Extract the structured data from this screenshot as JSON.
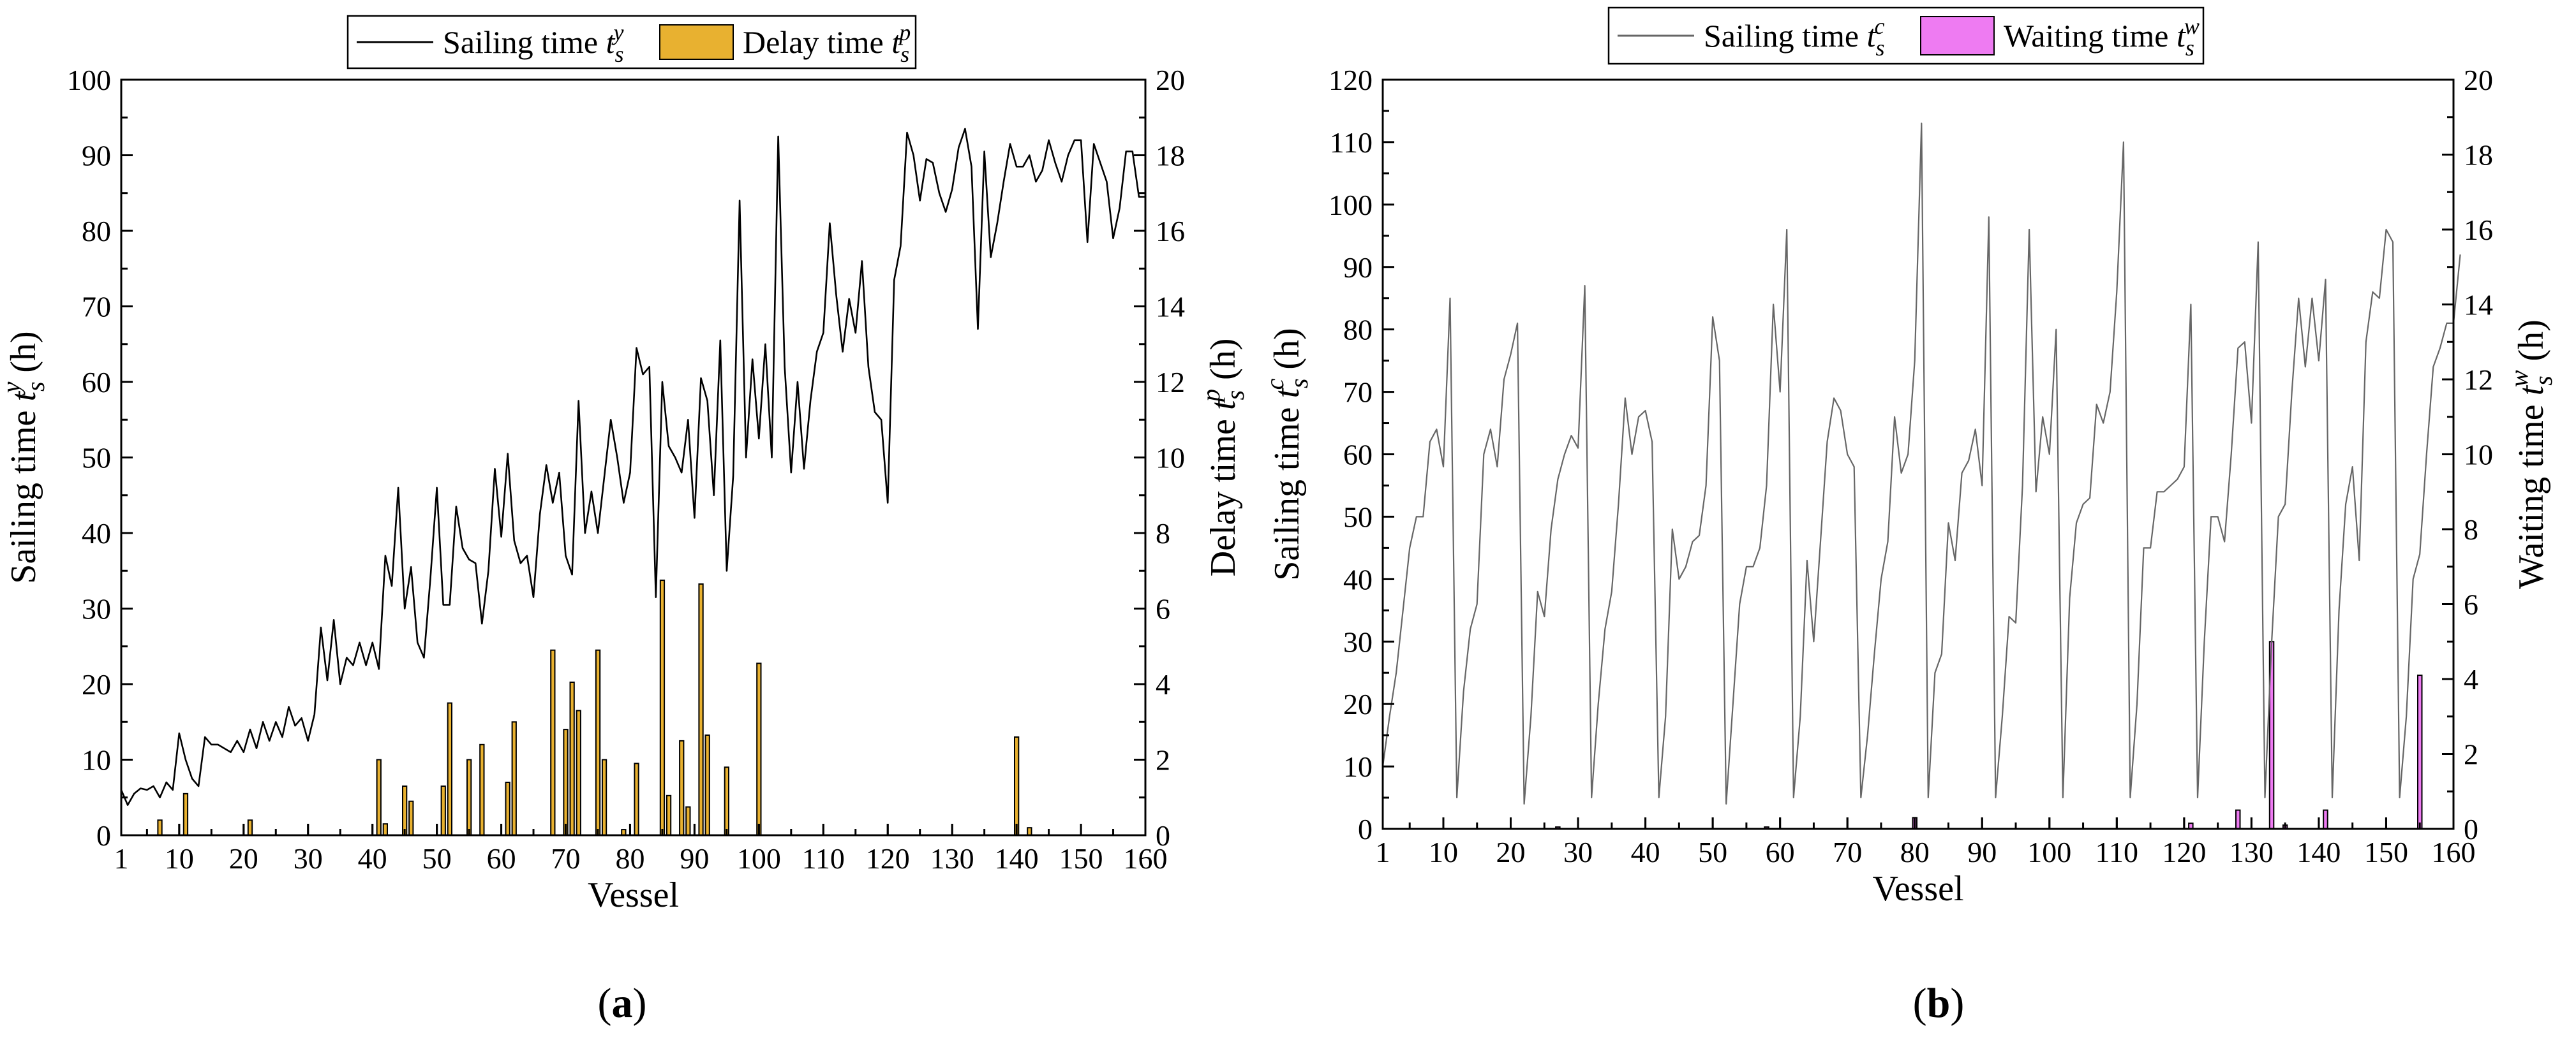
{
  "chart_data": [
    {
      "type": "line+bar",
      "panel_label": "(a)",
      "xlabel": "Vessel",
      "ylabel": "Sailing time t_s^y (h)",
      "ylabel_right": "Delay time t_s^p (h)",
      "xlim": [
        1,
        160
      ],
      "ylim": [
        0,
        100
      ],
      "ylim_right": [
        0,
        20
      ],
      "x_ticks": [
        1,
        10,
        20,
        30,
        40,
        50,
        60,
        70,
        80,
        90,
        100,
        110,
        120,
        130,
        140,
        150,
        160
      ],
      "y_ticks": [
        0,
        10,
        20,
        30,
        40,
        50,
        60,
        70,
        80,
        90,
        100
      ],
      "y_ticks_right": [
        0,
        2,
        4,
        6,
        8,
        10,
        12,
        14,
        16,
        18,
        20
      ],
      "legend_placement": "top-center",
      "legend": [
        {
          "label": "Sailing time t",
          "sub": "s",
          "sup": "y",
          "kind": "line",
          "color": "#000000"
        },
        {
          "label": "Delay time t",
          "sub": "s",
          "sup": "p",
          "kind": "bar",
          "color": "#E8B130"
        }
      ],
      "series": [
        {
          "name": "Sailing time t_s^y",
          "kind": "line",
          "axis": "left",
          "color": "#000000",
          "values": [
            6.0,
            4.0,
            5.5,
            6.2,
            6.0,
            6.5,
            5.0,
            7.0,
            6.0,
            13.5,
            10.0,
            7.5,
            6.5,
            13.0,
            12.0,
            12.0,
            11.5,
            11.0,
            12.5,
            11.0,
            14.0,
            11.5,
            15.0,
            12.5,
            15.0,
            13.0,
            17.0,
            14.5,
            15.5,
            12.5,
            16.0,
            27.5,
            20.5,
            28.5,
            20.0,
            23.5,
            22.5,
            25.5,
            22.5,
            25.5,
            22.0,
            37.0,
            33.0,
            46.0,
            30.0,
            35.5,
            25.5,
            23.5,
            34.0,
            46.0,
            30.5,
            30.5,
            43.5,
            38.0,
            36.5,
            36.0,
            28.0,
            35.0,
            48.5,
            39.5,
            50.5,
            39.0,
            36.0,
            37.0,
            31.5,
            42.5,
            49.0,
            44.0,
            48.0,
            37.0,
            34.5,
            57.5,
            40.0,
            45.5,
            40.0,
            47.5,
            55.0,
            50.0,
            44.0,
            48.0,
            64.5,
            61.0,
            62.0,
            31.5,
            60.0,
            51.5,
            50.0,
            48.0,
            55.0,
            42.0,
            60.5,
            57.5,
            45.0,
            65.5,
            35.0,
            47.5,
            84.0,
            50.0,
            63.0,
            52.5,
            65.0,
            50.0,
            92.5,
            62.0,
            48.0,
            60.0,
            48.5,
            57.5,
            64.0,
            66.5,
            81.0,
            71.5,
            64.0,
            71.0,
            66.5,
            76.0,
            62.0,
            56.0,
            55.0,
            44.0,
            73.5,
            78.0,
            93.0,
            90.0,
            84.0,
            89.5,
            89.0,
            85.0,
            82.5,
            85.5,
            91.0,
            93.5,
            88.5,
            67.0,
            90.5,
            76.5,
            81.0,
            86.5,
            91.5,
            88.5,
            88.5,
            90.0,
            86.5,
            88.0,
            92.0,
            89.0,
            86.5,
            90.0,
            92.0,
            92.0,
            78.5,
            91.5,
            89.0,
            86.5,
            79.0,
            83.0,
            90.5,
            90.5,
            84.5,
            84.5
          ]
        },
        {
          "name": "Delay time t_s^p",
          "kind": "bar",
          "axis": "right",
          "color": "#E8B130",
          "points": [
            [
              7,
              0.4
            ],
            [
              11,
              1.1
            ],
            [
              21,
              0.4
            ],
            [
              41,
              2.0
            ],
            [
              42,
              0.3
            ],
            [
              45,
              1.3
            ],
            [
              46,
              0.9
            ],
            [
              51,
              1.3
            ],
            [
              52,
              3.5
            ],
            [
              55,
              2.0
            ],
            [
              57,
              2.4
            ],
            [
              61,
              1.4
            ],
            [
              62,
              3.0
            ],
            [
              68,
              4.9
            ],
            [
              70,
              2.8
            ],
            [
              71,
              4.05
            ],
            [
              72,
              3.3
            ],
            [
              75,
              4.9
            ],
            [
              76,
              2.0
            ],
            [
              79,
              0.15
            ],
            [
              81,
              1.9
            ],
            [
              85,
              6.75
            ],
            [
              86,
              1.05
            ],
            [
              88,
              2.5
            ],
            [
              89,
              0.75
            ],
            [
              91,
              6.65
            ],
            [
              92,
              2.65
            ],
            [
              95,
              1.8
            ],
            [
              100,
              4.55
            ],
            [
              140,
              2.6
            ],
            [
              142,
              0.2
            ]
          ]
        }
      ]
    },
    {
      "type": "line+bar",
      "panel_label": "(b)",
      "xlabel": "Vessel",
      "ylabel": "Sailing time t_s^c (h)",
      "ylabel_right": "Waiting time t_s^w (h)",
      "xlim": [
        1,
        160
      ],
      "ylim": [
        0,
        120
      ],
      "ylim_right": [
        0,
        20
      ],
      "x_ticks": [
        1,
        10,
        20,
        30,
        40,
        50,
        60,
        70,
        80,
        90,
        100,
        110,
        120,
        130,
        140,
        150,
        160
      ],
      "y_ticks": [
        0,
        10,
        20,
        30,
        40,
        50,
        60,
        70,
        80,
        90,
        100,
        110,
        120
      ],
      "y_ticks_right": [
        0,
        2,
        4,
        6,
        8,
        10,
        12,
        14,
        16,
        18,
        20
      ],
      "legend_placement": "top-center",
      "legend": [
        {
          "label": "Sailing time t",
          "sub": "s",
          "sup": "c",
          "kind": "line",
          "color": "#666666"
        },
        {
          "label": "Waiting time t",
          "sub": "s",
          "sup": "w",
          "kind": "bar",
          "color": "#EE7BF2"
        }
      ],
      "series": [
        {
          "name": "Sailing time t_s^c",
          "kind": "line",
          "axis": "left",
          "color": "#666666",
          "values": [
            10,
            18,
            25,
            35,
            45,
            50,
            50,
            62,
            64,
            58,
            85,
            5,
            22,
            32,
            36,
            60,
            64,
            58,
            72,
            76,
            81,
            4,
            18,
            38,
            34,
            48,
            56,
            60,
            63,
            61,
            87,
            5,
            20,
            32,
            38,
            52,
            69,
            60,
            66,
            67,
            62,
            5,
            18,
            48,
            40,
            42,
            46,
            47,
            55,
            82,
            75,
            4,
            20,
            36,
            42,
            42,
            45,
            55,
            84,
            70,
            96,
            5,
            18,
            43,
            30,
            46,
            62,
            69,
            67,
            60,
            58,
            5,
            15,
            28,
            40,
            46,
            66,
            57,
            60,
            75,
            113,
            5,
            25,
            28,
            49,
            43,
            57,
            59,
            64,
            55,
            98,
            5,
            18,
            34,
            33,
            55,
            96,
            54,
            66,
            60,
            80,
            5,
            37,
            49,
            52,
            53,
            68,
            65,
            70,
            86,
            110,
            5,
            20,
            45,
            45,
            54,
            54,
            55,
            56,
            58,
            84,
            5,
            30,
            50,
            50,
            46,
            60,
            77,
            78,
            65,
            94,
            5,
            30,
            50,
            52,
            70,
            85,
            74,
            85,
            75,
            88,
            5,
            35,
            52,
            58,
            43,
            78,
            86,
            85,
            96,
            94,
            5,
            18,
            40,
            44,
            60,
            74,
            77,
            81,
            81,
            92
          ]
        },
        {
          "name": "Waiting time t_s^w",
          "kind": "bar",
          "axis": "right",
          "color": "#EE7BF2",
          "points": [
            [
              27,
              0.05
            ],
            [
              58,
              0.05
            ],
            [
              80,
              0.3
            ],
            [
              121,
              0.15
            ],
            [
              128,
              0.5
            ],
            [
              133,
              5.0
            ],
            [
              135,
              0.1
            ],
            [
              141,
              0.5
            ],
            [
              155,
              4.1
            ]
          ]
        }
      ]
    }
  ]
}
